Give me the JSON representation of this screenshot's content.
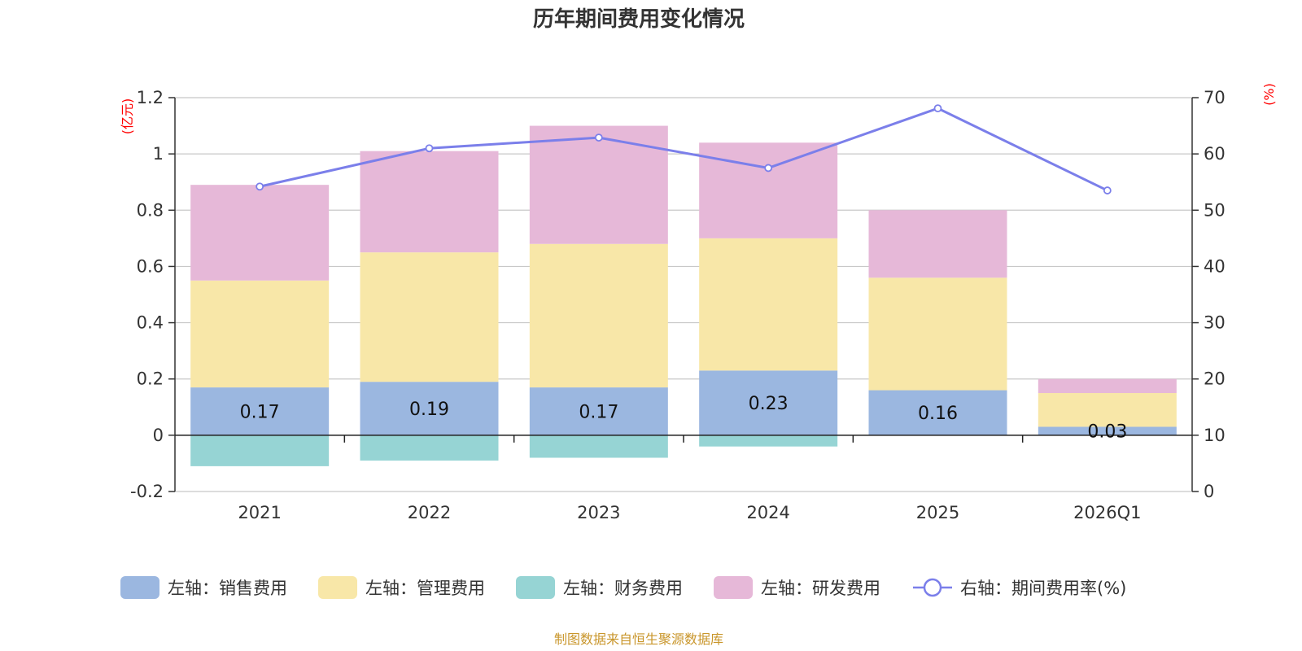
{
  "chart_data": {
    "type": "bar",
    "title": "历年期间费用变化情况",
    "categories": [
      "2021",
      "2022",
      "2023",
      "2024",
      "2025",
      "2026Q1"
    ],
    "left_axis": {
      "unit": "(亿元)",
      "ylim": [
        -0.2,
        1.2
      ],
      "ticks": [
        "-0.2",
        "0",
        "0.2",
        "0.4",
        "0.6",
        "0.8",
        "1",
        "1.2"
      ]
    },
    "right_axis": {
      "unit": "(%)",
      "ylim": [
        0,
        70
      ],
      "ticks": [
        "0",
        "10",
        "20",
        "30",
        "40",
        "50",
        "60",
        "70"
      ]
    },
    "series": [
      {
        "name": "左轴：销售费用",
        "type": "bar",
        "axis": "left",
        "color": "#9bb7e0",
        "values": [
          0.17,
          0.19,
          0.17,
          0.23,
          0.16,
          0.03
        ],
        "labels": [
          "0.17",
          "0.19",
          "0.17",
          "0.23",
          "0.16",
          "0.03"
        ]
      },
      {
        "name": "左轴：管理费用",
        "type": "bar",
        "axis": "left",
        "color": "#f8e7a8",
        "values": [
          0.38,
          0.46,
          0.51,
          0.47,
          0.4,
          0.12
        ]
      },
      {
        "name": "左轴：财务费用",
        "type": "bar",
        "axis": "left",
        "color": "#96d4d4",
        "values": [
          -0.11,
          -0.09,
          -0.08,
          -0.04,
          0.0,
          0.0
        ]
      },
      {
        "name": "左轴：研发费用",
        "type": "bar",
        "axis": "left",
        "color": "#e6b8d8",
        "values": [
          0.34,
          0.36,
          0.42,
          0.34,
          0.24,
          0.05
        ]
      },
      {
        "name": "右轴：期间费用率(%)",
        "type": "line",
        "axis": "right",
        "color": "#7b7fea",
        "values": [
          54.2,
          61.0,
          62.9,
          57.5,
          68.1,
          53.5
        ]
      }
    ]
  },
  "source_text": "制图数据来自恒生聚源数据库"
}
